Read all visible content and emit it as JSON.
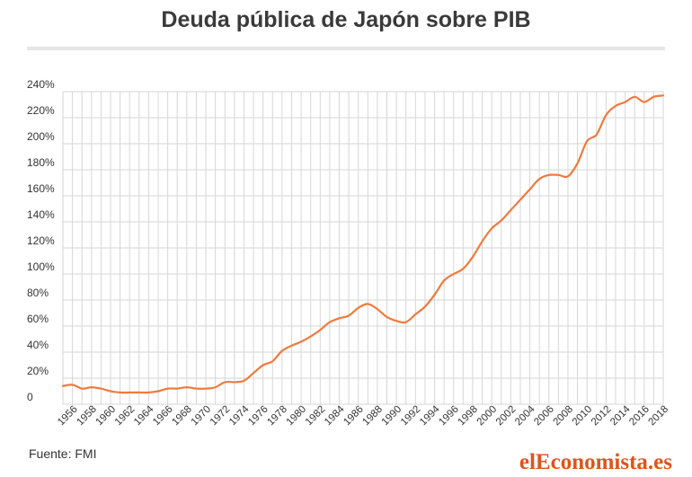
{
  "header": {
    "title": "Deuda pública de Japón sobre PIB"
  },
  "footer": {
    "source": "Fuente: FMI",
    "brand": "elEconomista.es"
  },
  "colors": {
    "line": "#f07a3c",
    "grid": "#d6d6d6",
    "brand": "#e0531e"
  },
  "chart_data": {
    "type": "line",
    "title": "Deuda pública de Japón sobre PIB",
    "xlabel": "",
    "ylabel": "",
    "xlim": [
      1955,
      2018
    ],
    "ylim": [
      0,
      240
    ],
    "y_ticks": [
      0,
      20,
      40,
      60,
      80,
      100,
      120,
      140,
      160,
      180,
      200,
      220,
      240
    ],
    "y_tick_labels": [
      "0",
      "20%",
      "40%",
      "60%",
      "80%",
      "100%",
      "120%",
      "140%",
      "160%",
      "180%",
      "200%",
      "220%",
      "240%"
    ],
    "x_tick_labels": [
      "1956",
      "1958",
      "1960",
      "1962",
      "1964",
      "1966",
      "1968",
      "1970",
      "1972",
      "1974",
      "1976",
      "1978",
      "1980",
      "1982",
      "1984",
      "1986",
      "1988",
      "1990",
      "1992",
      "1994",
      "1996",
      "1998",
      "2000",
      "2002",
      "2004",
      "2006",
      "2008",
      "2010",
      "2012",
      "2014",
      "2016",
      "2018"
    ],
    "grid": true,
    "legend": "none",
    "series": [
      {
        "x": [
          1955,
          1956,
          1957,
          1958,
          1959,
          1960,
          1961,
          1962,
          1963,
          1964,
          1965,
          1966,
          1967,
          1968,
          1969,
          1970,
          1971,
          1972,
          1973,
          1974,
          1975,
          1976,
          1977,
          1978,
          1979,
          1980,
          1981,
          1982,
          1983,
          1984,
          1985,
          1986,
          1987,
          1988,
          1989,
          1990,
          1991,
          1992,
          1993,
          1994,
          1995,
          1996,
          1997,
          1998,
          1999,
          2000,
          2001,
          2002,
          2003,
          2004,
          2005,
          2006,
          2007,
          2008,
          2009,
          2010,
          2011,
          2012,
          2013,
          2014,
          2015,
          2016,
          2017,
          2018
        ],
        "values": [
          14,
          15,
          12,
          13,
          12,
          10,
          9,
          9,
          9,
          9,
          10,
          12,
          12,
          13,
          12,
          12,
          13,
          17,
          17,
          18,
          24,
          30,
          33,
          41,
          45,
          48,
          52,
          57,
          63,
          66,
          68,
          74,
          77,
          73,
          67,
          64,
          63,
          69,
          75,
          84,
          95,
          100,
          104,
          113,
          125,
          135,
          141,
          149,
          157,
          165,
          173,
          176,
          176,
          175,
          185,
          202,
          207,
          222,
          229,
          232,
          236,
          232,
          236,
          237
        ]
      }
    ]
  }
}
